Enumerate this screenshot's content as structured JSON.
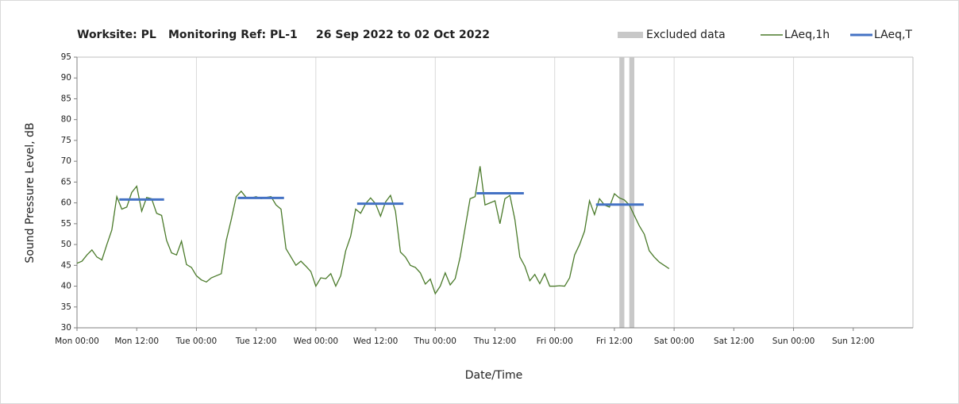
{
  "chart_data": {
    "type": "line",
    "title": [
      "Worksite: PL",
      "Monitoring Ref: PL-1",
      "26 Sep 2022 to 02 Oct 2022"
    ],
    "xlabel": "Date/Time",
    "ylabel": "Sound Pressure Level, dB",
    "xlim": [
      0,
      168
    ],
    "xticks": [
      {
        "value": 0,
        "label": "Mon 00:00"
      },
      {
        "value": 12,
        "label": "Mon 12:00"
      },
      {
        "value": 24,
        "label": "Tue 00:00"
      },
      {
        "value": 36,
        "label": "Tue 12:00"
      },
      {
        "value": 48,
        "label": "Wed 00:00"
      },
      {
        "value": 60,
        "label": "Wed 12:00"
      },
      {
        "value": 72,
        "label": "Thu 00:00"
      },
      {
        "value": 84,
        "label": "Thu 12:00"
      },
      {
        "value": 96,
        "label": "Fri 00:00"
      },
      {
        "value": 108,
        "label": "Fri 12:00"
      },
      {
        "value": 120,
        "label": "Sat 00:00"
      },
      {
        "value": 132,
        "label": "Sat 12:00"
      },
      {
        "value": 144,
        "label": "Sun 00:00"
      },
      {
        "value": 156,
        "label": "Sun 12:00"
      }
    ],
    "xgrid": [
      24,
      48,
      72,
      96,
      120,
      144
    ],
    "ylim": [
      30,
      95
    ],
    "yticks": [
      30,
      35,
      40,
      45,
      50,
      55,
      60,
      65,
      70,
      75,
      80,
      85,
      90,
      95
    ],
    "excluded": {
      "name": "Excluded data",
      "color": "#c8c8c8",
      "ranges": [
        [
          109,
          110
        ],
        [
          111,
          112
        ]
      ]
    },
    "series": [
      {
        "name": "LAeq,1h",
        "color": "#4a7a2a",
        "x": [
          0,
          1,
          2,
          3,
          4,
          5,
          6,
          7,
          8,
          9,
          10,
          11,
          12,
          13,
          14,
          15,
          16,
          17,
          18,
          19,
          20,
          21,
          22,
          23,
          24,
          25,
          26,
          27,
          28,
          29,
          30,
          31,
          32,
          33,
          34,
          35,
          36,
          37,
          38,
          39,
          40,
          41,
          42,
          43,
          44,
          45,
          46,
          47,
          48,
          49,
          50,
          51,
          52,
          53,
          54,
          55,
          56,
          57,
          58,
          59,
          60,
          61,
          62,
          63,
          64,
          65,
          66,
          67,
          68,
          69,
          70,
          71,
          72,
          73,
          74,
          75,
          76,
          77,
          78,
          79,
          80,
          81,
          82,
          83,
          84,
          85,
          86,
          87,
          88,
          89,
          90,
          91,
          92,
          93,
          94,
          95,
          96,
          97,
          98,
          99,
          100,
          101,
          102,
          103,
          104,
          105,
          106,
          107,
          108,
          109,
          110,
          111,
          112,
          113,
          114,
          115,
          116,
          117,
          118,
          119
        ],
        "values": [
          45.5,
          46,
          47.5,
          48.7,
          47,
          46.3,
          50,
          53.5,
          61.5,
          58.5,
          59,
          62.5,
          64,
          58,
          61.3,
          61,
          57.5,
          57,
          51,
          48,
          47.5,
          50.8,
          45.2,
          44.5,
          42.5,
          41.5,
          41,
          42,
          42.5,
          43,
          51,
          56,
          61.5,
          62.8,
          61.3,
          61.2,
          61.5,
          61,
          61.3,
          61.5,
          59.5,
          58.5,
          49,
          47,
          45,
          46,
          44.8,
          43.5,
          40,
          42,
          41.8,
          43,
          40,
          42.5,
          48.5,
          52,
          58.5,
          57.5,
          59.8,
          61.2,
          59.8,
          56.8,
          60.2,
          61.8,
          58,
          48.2,
          47,
          45,
          44.5,
          43.2,
          40.5,
          41.7,
          38.2,
          40,
          43.2,
          40.3,
          41.8,
          47,
          54,
          61,
          61.5,
          68.8,
          59.5,
          60,
          60.5,
          55,
          61,
          61.8,
          56,
          47,
          44.8,
          41.3,
          42.8,
          40.6,
          43,
          40,
          40,
          40.1,
          40,
          42,
          47.5,
          50,
          53.2,
          60.5,
          57.2,
          61,
          59.5,
          59,
          62.2,
          61.2,
          60.7,
          59.5,
          57,
          54.5,
          52.5,
          48.5,
          47,
          45.8,
          45,
          44.2
        ]
      },
      {
        "name": "LAeq,T",
        "color": "#4472c4",
        "segments": [
          {
            "x0": 8.5,
            "x1": 17.5,
            "value": 60.8
          },
          {
            "x0": 32.3,
            "x1": 41.6,
            "value": 61.2
          },
          {
            "x0": 56.3,
            "x1": 65.6,
            "value": 59.8
          },
          {
            "x0": 80.3,
            "x1": 89.8,
            "value": 62.3
          },
          {
            "x0": 104.3,
            "x1": 113.9,
            "value": 59.6
          }
        ]
      }
    ]
  }
}
